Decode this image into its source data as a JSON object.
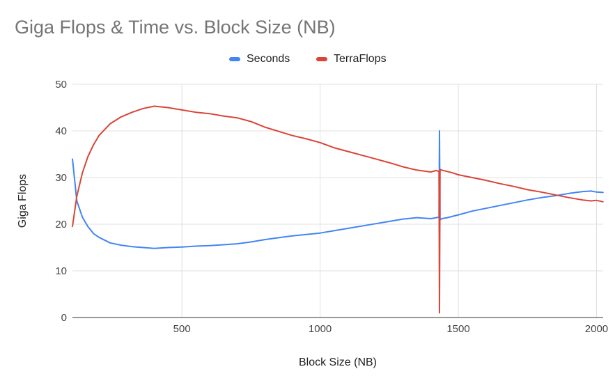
{
  "chart_data": {
    "type": "line",
    "title": "Giga Flops & Time vs. Block Size (NB)",
    "xlabel": "Block Size (NB)",
    "ylabel": "Giga Flops",
    "xlim": [
      104,
      2024
    ],
    "ylim": [
      0,
      50
    ],
    "x_ticks": [
      "500",
      "1000",
      "1500",
      "2000"
    ],
    "x_tick_values": [
      500,
      1000,
      1500,
      2000
    ],
    "y_ticks": [
      "0",
      "10",
      "20",
      "30",
      "40",
      "50"
    ],
    "y_tick_values": [
      0,
      10,
      20,
      30,
      40,
      50
    ],
    "grid": true,
    "legend_position": "top",
    "series": [
      {
        "name": "Seconds",
        "color": "#4285f4",
        "x": [
          104,
          120,
          140,
          160,
          180,
          200,
          240,
          280,
          320,
          360,
          400,
          450,
          500,
          550,
          600,
          650,
          700,
          750,
          800,
          850,
          900,
          950,
          1000,
          1050,
          1100,
          1150,
          1200,
          1250,
          1300,
          1350,
          1400,
          1420,
          1430,
          1432,
          1434,
          1436,
          1440,
          1460,
          1480,
          1500,
          1550,
          1600,
          1650,
          1700,
          1750,
          1800,
          1850,
          1900,
          1950,
          1980,
          2000,
          2024
        ],
        "y": [
          34,
          25,
          21.5,
          19.5,
          18,
          17.2,
          16,
          15.5,
          15.2,
          15,
          14.8,
          15,
          15.1,
          15.3,
          15.4,
          15.6,
          15.8,
          16.2,
          16.7,
          17.1,
          17.5,
          17.8,
          18.1,
          18.6,
          19.1,
          19.6,
          20.1,
          20.6,
          21.1,
          21.4,
          21.2,
          21.4,
          21.5,
          40,
          21,
          21,
          21.2,
          21.4,
          21.7,
          22,
          22.8,
          23.4,
          24,
          24.6,
          25.2,
          25.7,
          26.1,
          26.6,
          27,
          27.1,
          26.9,
          26.8
        ]
      },
      {
        "name": "TerraFlops",
        "color": "#db4437",
        "x": [
          104,
          120,
          140,
          160,
          180,
          200,
          240,
          280,
          320,
          360,
          400,
          450,
          500,
          550,
          600,
          650,
          700,
          750,
          800,
          850,
          900,
          950,
          1000,
          1050,
          1100,
          1150,
          1200,
          1250,
          1300,
          1350,
          1400,
          1420,
          1430,
          1432,
          1434,
          1436,
          1440,
          1460,
          1480,
          1500,
          1550,
          1600,
          1650,
          1700,
          1750,
          1800,
          1850,
          1900,
          1950,
          1980,
          2000,
          2024
        ],
        "y": [
          19.5,
          26,
          31,
          34.5,
          37,
          39,
          41.5,
          43,
          44,
          44.8,
          45.3,
          45,
          44.5,
          44,
          43.7,
          43.2,
          42.8,
          42,
          40.8,
          39.9,
          39,
          38.3,
          37.5,
          36.4,
          35.6,
          34.8,
          34,
          33.2,
          32.3,
          31.6,
          31.2,
          31.5,
          31.3,
          1,
          31.5,
          31.7,
          31.6,
          31.3,
          31,
          30.6,
          30,
          29.4,
          28.7,
          28.1,
          27.4,
          26.9,
          26.3,
          25.7,
          25.2,
          25,
          25.1,
          24.8
        ]
      }
    ]
  }
}
